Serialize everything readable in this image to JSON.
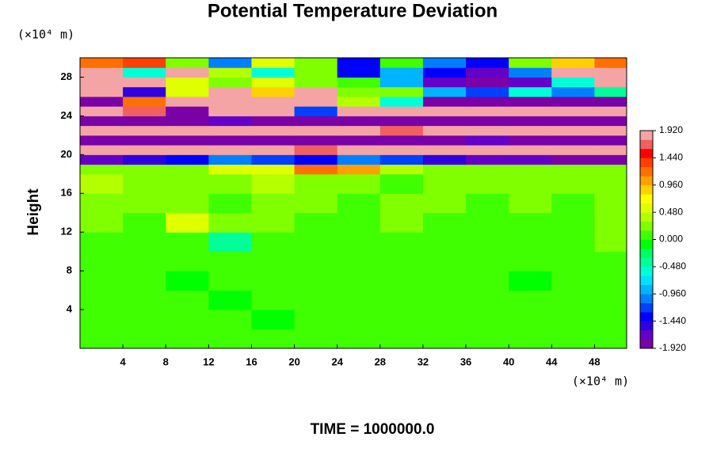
{
  "chart_data": {
    "type": "heatmap",
    "title": "Potential Temperature Deviation",
    "y_unit": "(×10⁴ m)",
    "x_unit": "(×10⁴ m)",
    "y_label": "Height",
    "footer": "TIME = 1000000.0",
    "xlim": [
      0,
      51
    ],
    "ylim": [
      0,
      30
    ],
    "xticks": [
      4,
      8,
      12,
      16,
      20,
      24,
      28,
      32,
      36,
      40,
      44,
      48
    ],
    "yticks": [
      4,
      8,
      12,
      16,
      20,
      24,
      28
    ],
    "x_bins": [
      0,
      4,
      8,
      12,
      16,
      20,
      24,
      28,
      32,
      36,
      40,
      44,
      48,
      51
    ],
    "y_bins": [
      0,
      2,
      4,
      6,
      8,
      10,
      12,
      14,
      16,
      18,
      19,
      20,
      21,
      22,
      23,
      24,
      25,
      26,
      27,
      28,
      29,
      30
    ],
    "z": [
      [
        0.0,
        0.05,
        0.0,
        0.1,
        0.0,
        0.05,
        0.0,
        0.0,
        0.05,
        0.0,
        0.1,
        0.0,
        0.05
      ],
      [
        0.05,
        0.0,
        0.1,
        0.0,
        -0.1,
        0.0,
        0.05,
        0.0,
        0.0,
        0.1,
        0.0,
        0.05,
        0.0
      ],
      [
        0.0,
        0.1,
        0.0,
        -0.15,
        0.0,
        0.0,
        0.1,
        0.0,
        0.05,
        0.0,
        0.0,
        0.1,
        0.0
      ],
      [
        0.0,
        0.0,
        -0.1,
        0.0,
        0.05,
        0.0,
        0.0,
        0.1,
        0.0,
        0.0,
        -0.1,
        0.0,
        0.0
      ],
      [
        0.1,
        0.0,
        0.0,
        0.05,
        0.0,
        0.1,
        0.0,
        0.0,
        0.05,
        0.0,
        0.0,
        0.0,
        0.05
      ],
      [
        0.1,
        0.05,
        0.15,
        -0.35,
        0.0,
        0.1,
        0.0,
        0.05,
        0.1,
        0.0,
        0.05,
        0.1,
        0.3
      ],
      [
        0.2,
        0.15,
        0.5,
        0.3,
        0.2,
        0.1,
        0.15,
        0.2,
        0.1,
        0.15,
        0.1,
        0.15,
        0.2
      ],
      [
        0.3,
        0.2,
        0.25,
        0.15,
        0.3,
        0.2,
        0.1,
        0.2,
        0.3,
        0.15,
        0.2,
        0.1,
        0.2
      ],
      [
        0.4,
        0.3,
        0.2,
        0.25,
        0.35,
        0.3,
        0.2,
        0.15,
        0.25,
        0.2,
        0.3,
        0.2,
        0.25
      ],
      [
        0.3,
        0.2,
        0.3,
        0.5,
        0.6,
        1.2,
        1.0,
        0.4,
        0.3,
        0.2,
        0.3,
        0.2,
        0.3
      ],
      [
        -1.6,
        -1.5,
        -1.3,
        -1.0,
        -1.2,
        -1.4,
        -1.0,
        -1.2,
        -1.5,
        -1.7,
        -1.6,
        -1.8,
        -1.9
      ],
      [
        1.9,
        1.9,
        1.8,
        1.9,
        1.9,
        1.7,
        1.9,
        1.9,
        1.8,
        1.9,
        1.9,
        1.9,
        1.8
      ],
      [
        -1.9,
        -1.9,
        -1.8,
        -1.9,
        -1.9,
        -1.9,
        -1.8,
        -1.9,
        -1.9,
        -1.7,
        -1.9,
        -1.9,
        -1.9
      ],
      [
        1.9,
        1.9,
        1.9,
        1.8,
        1.9,
        1.9,
        1.9,
        1.7,
        1.9,
        1.9,
        1.9,
        1.9,
        1.9
      ],
      [
        -1.9,
        -1.8,
        -1.9,
        -1.6,
        -1.9,
        -1.9,
        -1.9,
        -1.8,
        -1.9,
        -1.9,
        -1.8,
        -1.9,
        -1.9
      ],
      [
        1.9,
        1.6,
        -1.9,
        1.9,
        1.9,
        -1.2,
        1.9,
        1.9,
        1.9,
        1.9,
        1.9,
        1.9,
        1.9
      ],
      [
        -1.9,
        1.2,
        1.9,
        1.9,
        1.9,
        1.9,
        0.4,
        -0.6,
        -1.9,
        -1.9,
        -1.9,
        -1.9,
        -1.9
      ],
      [
        1.9,
        -1.5,
        0.6,
        1.9,
        0.8,
        1.9,
        0.3,
        0.2,
        -0.8,
        -1.2,
        -0.6,
        -1.0,
        -0.4
      ],
      [
        1.9,
        1.9,
        0.5,
        0.2,
        0.6,
        0.3,
        0.1,
        -0.9,
        -1.6,
        -1.9,
        -1.7,
        -0.5,
        1.9
      ],
      [
        1.9,
        -0.5,
        1.9,
        0.4,
        -0.6,
        0.2,
        -1.4,
        -0.8,
        -1.4,
        -1.6,
        -1.0,
        1.9,
        1.9
      ],
      [
        1.2,
        1.4,
        0.3,
        -1.0,
        0.6,
        0.2,
        -1.3,
        0.1,
        -1.0,
        -1.4,
        0.2,
        0.8,
        1.2
      ]
    ],
    "colorbar": {
      "lim": [
        -1.92,
        1.92
      ],
      "ticks": [
        {
          "value": 1.92,
          "label": "1.920"
        },
        {
          "value": 1.44,
          "label": "1.440"
        },
        {
          "value": 0.96,
          "label": "0.960"
        },
        {
          "value": 0.48,
          "label": "0.480"
        },
        {
          "value": 0,
          "label": "0.000"
        },
        {
          "value": -0.48,
          "label": "-0.480"
        },
        {
          "value": -0.96,
          "label": "-0.960"
        },
        {
          "value": -1.44,
          "label": "-1.440"
        },
        {
          "value": -1.92,
          "label": "-1.920"
        }
      ],
      "colors": [
        "#7a00a8",
        "#6400c8",
        "#3000e0",
        "#0000ff",
        "#0040ff",
        "#0080ff",
        "#00b4ff",
        "#00e0ff",
        "#00ffd8",
        "#00ff98",
        "#00ff60",
        "#00ff00",
        "#40ff00",
        "#80ff00",
        "#b4ff00",
        "#e0ff00",
        "#ffff00",
        "#ffd000",
        "#ffa000",
        "#ff7000",
        "#ff4000",
        "#ff0000",
        "#f06060",
        "#f4a4a4"
      ]
    }
  }
}
